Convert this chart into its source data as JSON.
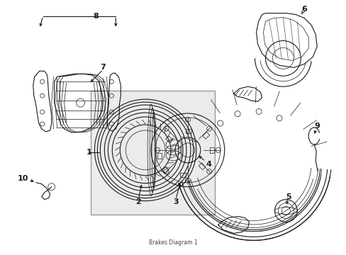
{
  "bg_color": "#ffffff",
  "line_color": "#1a1a1a",
  "box_fill": "#ebebeb",
  "box_edge": "#999999",
  "subtitle": "Brakes Diagram 1",
  "figsize": [
    4.89,
    3.6
  ],
  "dpi": 100
}
